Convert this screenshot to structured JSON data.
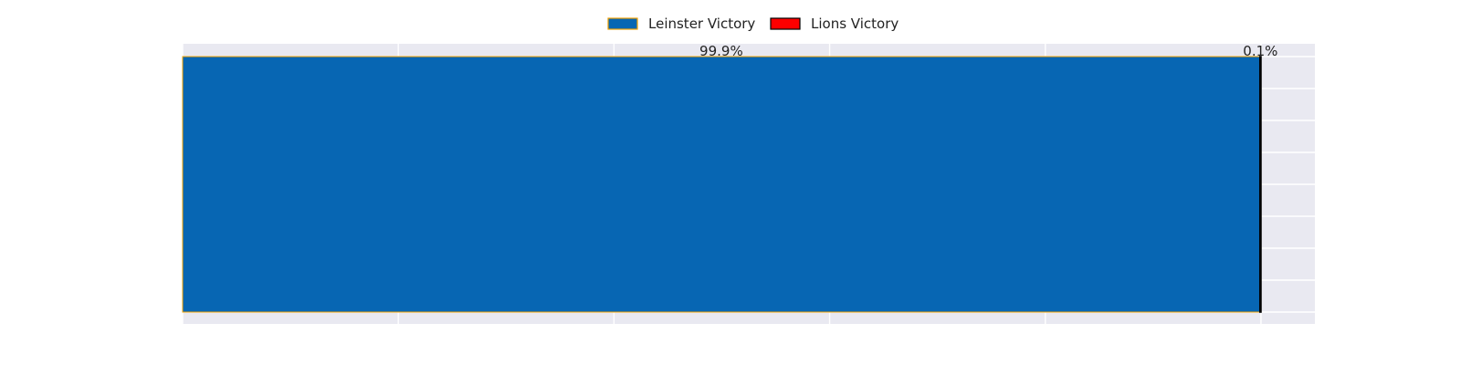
{
  "chart_data": {
    "type": "bar",
    "orientation": "horizontal",
    "stacked": true,
    "categories": [
      ""
    ],
    "series": [
      {
        "name": "Leinster Victory",
        "values": [
          99.9
        ],
        "color": "#0766b3",
        "edge_color": "#f0a000",
        "label": "99.9%"
      },
      {
        "name": "Lions Victory",
        "values": [
          0.1
        ],
        "color": "#ff0000",
        "edge_color": "#000000",
        "label": "0.1%"
      }
    ],
    "xlim": [
      0,
      105
    ],
    "grid": true,
    "legend_position": "top-center",
    "background_color": "#e9e9f1",
    "grid_color": "#ffffff"
  }
}
